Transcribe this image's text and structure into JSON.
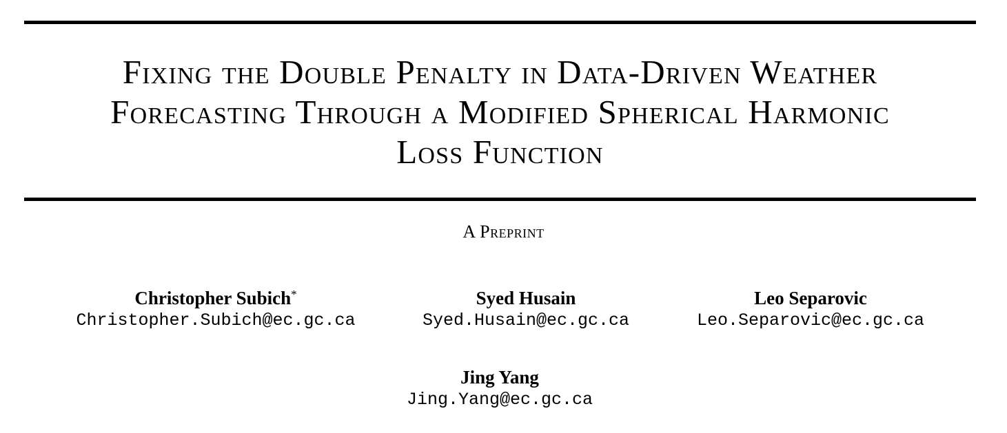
{
  "paper": {
    "title_lines": [
      "Fixing the Double Penalty in Data-Driven Weather",
      "Forecasting Through a Modified Spherical Harmonic",
      "Loss Function"
    ],
    "subtitle": "A Preprint",
    "authors": [
      {
        "name": "Christopher Subich",
        "marker": "*",
        "email": "Christopher.Subich@ec.gc.ca"
      },
      {
        "name": "Syed Husain",
        "marker": "",
        "email": "Syed.Husain@ec.gc.ca"
      },
      {
        "name": "Leo Separovic",
        "marker": "",
        "email": "Leo.Separovic@ec.gc.ca"
      },
      {
        "name": "Jing Yang",
        "marker": "",
        "email": "Jing.Yang@ec.gc.ca"
      }
    ]
  }
}
